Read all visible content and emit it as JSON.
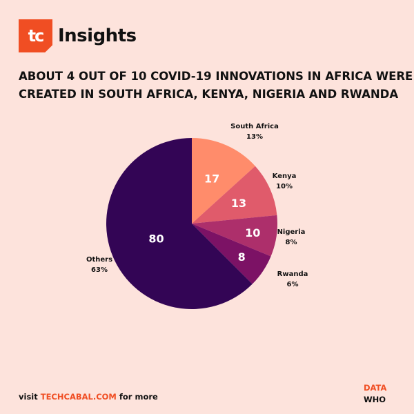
{
  "brand": {
    "logo_text": "tc",
    "name": "Insights"
  },
  "title_lines": [
    "ABOUT 4 OUT OF 10 COVID-19 INNOVATIONS IN AFRICA WERE",
    "CREATED IN SOUTH AFRICA, KENYA, NIGERIA AND RWANDA"
  ],
  "chart_data": {
    "type": "pie",
    "title": "ABOUT 4 OUT OF 10 COVID-19 INNOVATIONS IN AFRICA WERE CREATED IN SOUTH AFRICA, KENYA, NIGERIA AND RWANDA",
    "start_angle_deg": 0,
    "direction": "clockwise",
    "slices": [
      {
        "label": "South Africa",
        "value": 17,
        "percent": "13%",
        "color": "#ff8c6b"
      },
      {
        "label": "Kenya",
        "value": 13,
        "percent": "10%",
        "color": "#e05b6b"
      },
      {
        "label": "Nigeria",
        "value": 10,
        "percent": "8%",
        "color": "#ad2f6b"
      },
      {
        "label": "Rwanda",
        "value": 8,
        "percent": "6%",
        "color": "#7c1265"
      },
      {
        "label": "Others",
        "value": 80,
        "percent": "63%",
        "color": "#330555"
      }
    ]
  },
  "footer": {
    "prefix": "visit ",
    "link": "TECHCABAL.COM",
    "suffix": " for more"
  },
  "source": {
    "label": "DATA",
    "value": "WHO"
  }
}
